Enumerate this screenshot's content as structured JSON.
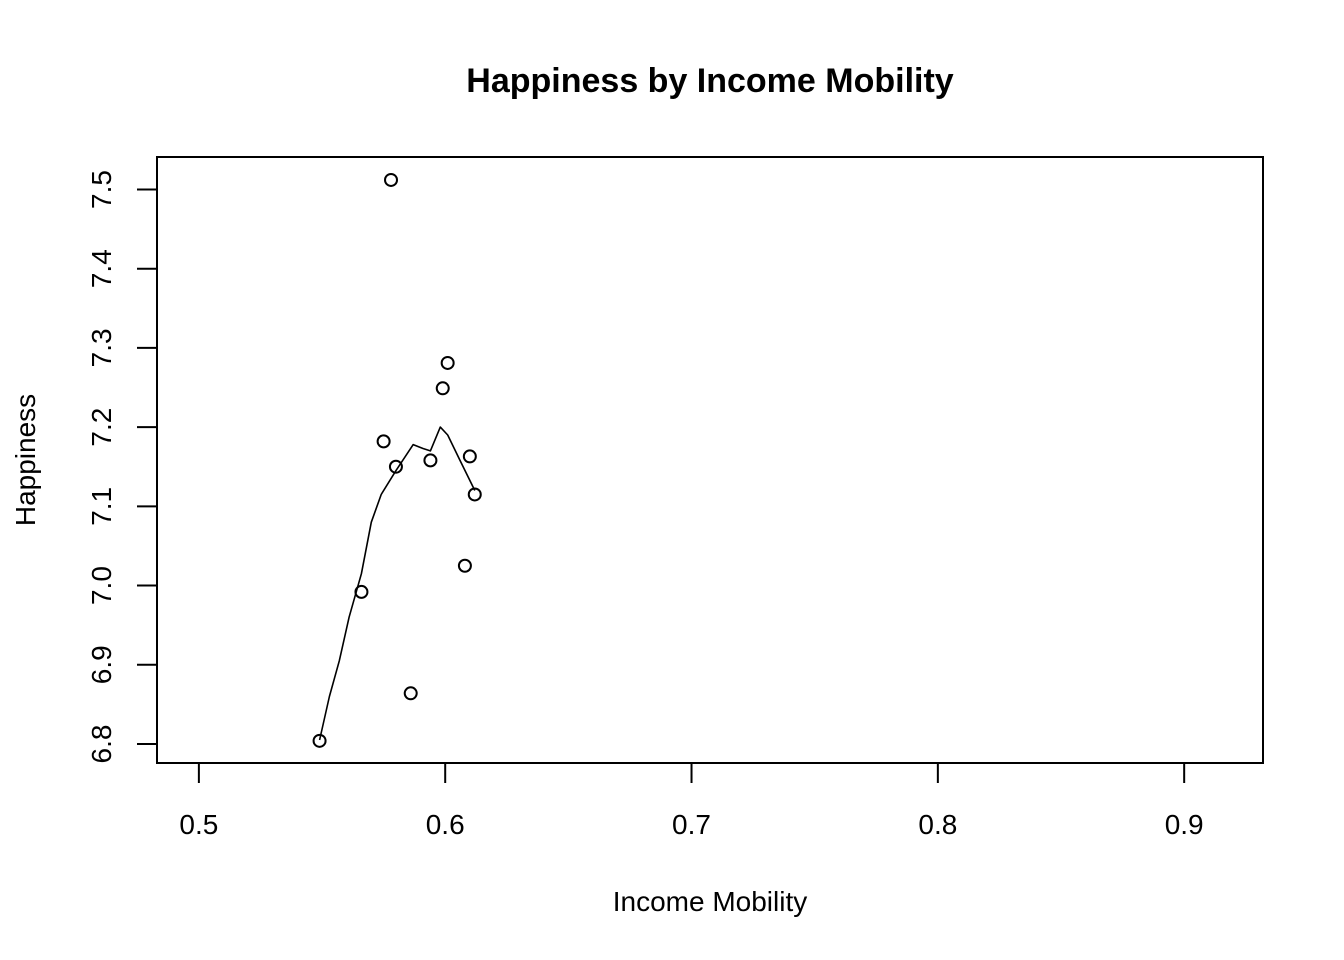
{
  "chart_data": {
    "type": "scatter",
    "title": "Happiness by Income Mobility",
    "xlabel": "Income Mobility",
    "ylabel": "Happiness",
    "xlim": [
      0.483,
      0.932
    ],
    "ylim": [
      6.776,
      7.541
    ],
    "x_ticks": [
      "0.5",
      "0.6",
      "0.7",
      "0.8",
      "0.9"
    ],
    "y_ticks": [
      "6.8",
      "6.9",
      "7.0",
      "7.1",
      "7.2",
      "7.3",
      "7.4",
      "7.5"
    ],
    "points": [
      {
        "x": 0.549,
        "y": 6.804
      },
      {
        "x": 0.566,
        "y": 6.992
      },
      {
        "x": 0.575,
        "y": 7.182
      },
      {
        "x": 0.578,
        "y": 7.512
      },
      {
        "x": 0.58,
        "y": 7.15
      },
      {
        "x": 0.586,
        "y": 6.864
      },
      {
        "x": 0.594,
        "y": 7.158
      },
      {
        "x": 0.599,
        "y": 7.249
      },
      {
        "x": 0.601,
        "y": 7.281
      },
      {
        "x": 0.608,
        "y": 7.025
      },
      {
        "x": 0.61,
        "y": 7.163
      },
      {
        "x": 0.612,
        "y": 7.115
      }
    ],
    "smooth_line": [
      {
        "x": 0.549,
        "y": 6.805
      },
      {
        "x": 0.553,
        "y": 6.86
      },
      {
        "x": 0.557,
        "y": 6.905
      },
      {
        "x": 0.561,
        "y": 6.96
      },
      {
        "x": 0.566,
        "y": 7.015
      },
      {
        "x": 0.57,
        "y": 7.08
      },
      {
        "x": 0.574,
        "y": 7.115
      },
      {
        "x": 0.58,
        "y": 7.145
      },
      {
        "x": 0.587,
        "y": 7.178
      },
      {
        "x": 0.591,
        "y": 7.173
      },
      {
        "x": 0.594,
        "y": 7.17
      },
      {
        "x": 0.598,
        "y": 7.2
      },
      {
        "x": 0.601,
        "y": 7.19
      },
      {
        "x": 0.606,
        "y": 7.158
      },
      {
        "x": 0.612,
        "y": 7.12
      }
    ],
    "grid": false,
    "legend": "none"
  }
}
